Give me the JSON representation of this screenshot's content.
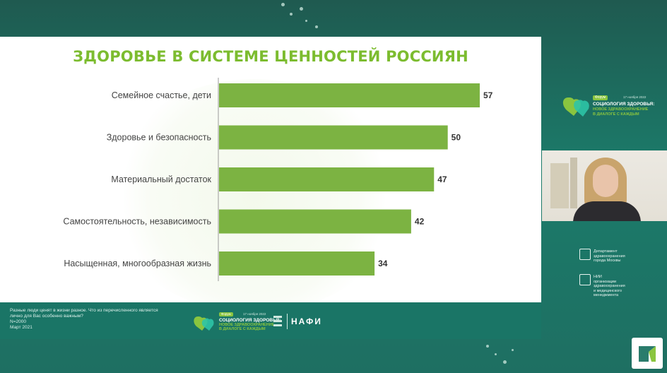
{
  "slide": {
    "title": "ЗДОРОВЬЕ В СИСТЕМЕ ЦЕННОСТЕЙ РОССИЯН"
  },
  "chart_data": {
    "type": "bar",
    "orientation": "horizontal",
    "categories": [
      "Семейное счастье, дети",
      "Здоровье и безопасность",
      "Материальный достаток",
      "Самостоятельность, независимость",
      "Насыщенная, многообразная жизнь"
    ],
    "values": [
      57,
      50,
      47,
      42,
      34
    ],
    "title": "ЗДОРОВЬЕ В СИСТЕМЕ ЦЕННОСТЕЙ РОССИЯН",
    "xlabel": "",
    "ylabel": "",
    "xlim": [
      0,
      57
    ],
    "grid": false,
    "data_labels": true,
    "bar_color": "#7cb342"
  },
  "footer": {
    "note_lines": [
      "Разные люди ценят в жизни разное. Что из перечисленного является",
      "лично для Вас особенно важным?",
      "N=2000",
      "Март 2021"
    ],
    "forum_tag": "Форум",
    "forum_date": "17 ноября 2022",
    "forum_title": "СОЦИОЛОГИЯ ЗДОРОВЬЯ:",
    "forum_subtitle_1": "НОВОЕ ЗДРАВООХРАНЕНИЕ",
    "forum_subtitle_2": "В ДИАЛОГЕ С КАЖДЫМ",
    "org_name": "НАФИ"
  },
  "right_panel": {
    "forum_tag": "Форум",
    "forum_date": "17 ноября 2022",
    "forum_title": "СОЦИОЛОГИЯ ЗДОРОВЬЯ:",
    "forum_subtitle_1": "НОВОЕ ЗДРАВООХРАНЕНИЕ",
    "forum_subtitle_2": "В ДИАЛОГЕ С КАЖДЫМ",
    "dept_line_1": "Департамент",
    "dept_line_2": "здравоохранения",
    "dept_line_3": "города Москвы",
    "nii_line_1": "НИИ",
    "nii_line_2": "организации",
    "nii_line_3": "здравоохранения",
    "nii_line_4": "и медицинского",
    "nii_line_5": "менеджмента"
  },
  "colors": {
    "title_green": "#7cbc2f",
    "bar_green": "#7cb342",
    "teal_background": "#1b7b6a",
    "footer_teal": "#1a7566"
  }
}
